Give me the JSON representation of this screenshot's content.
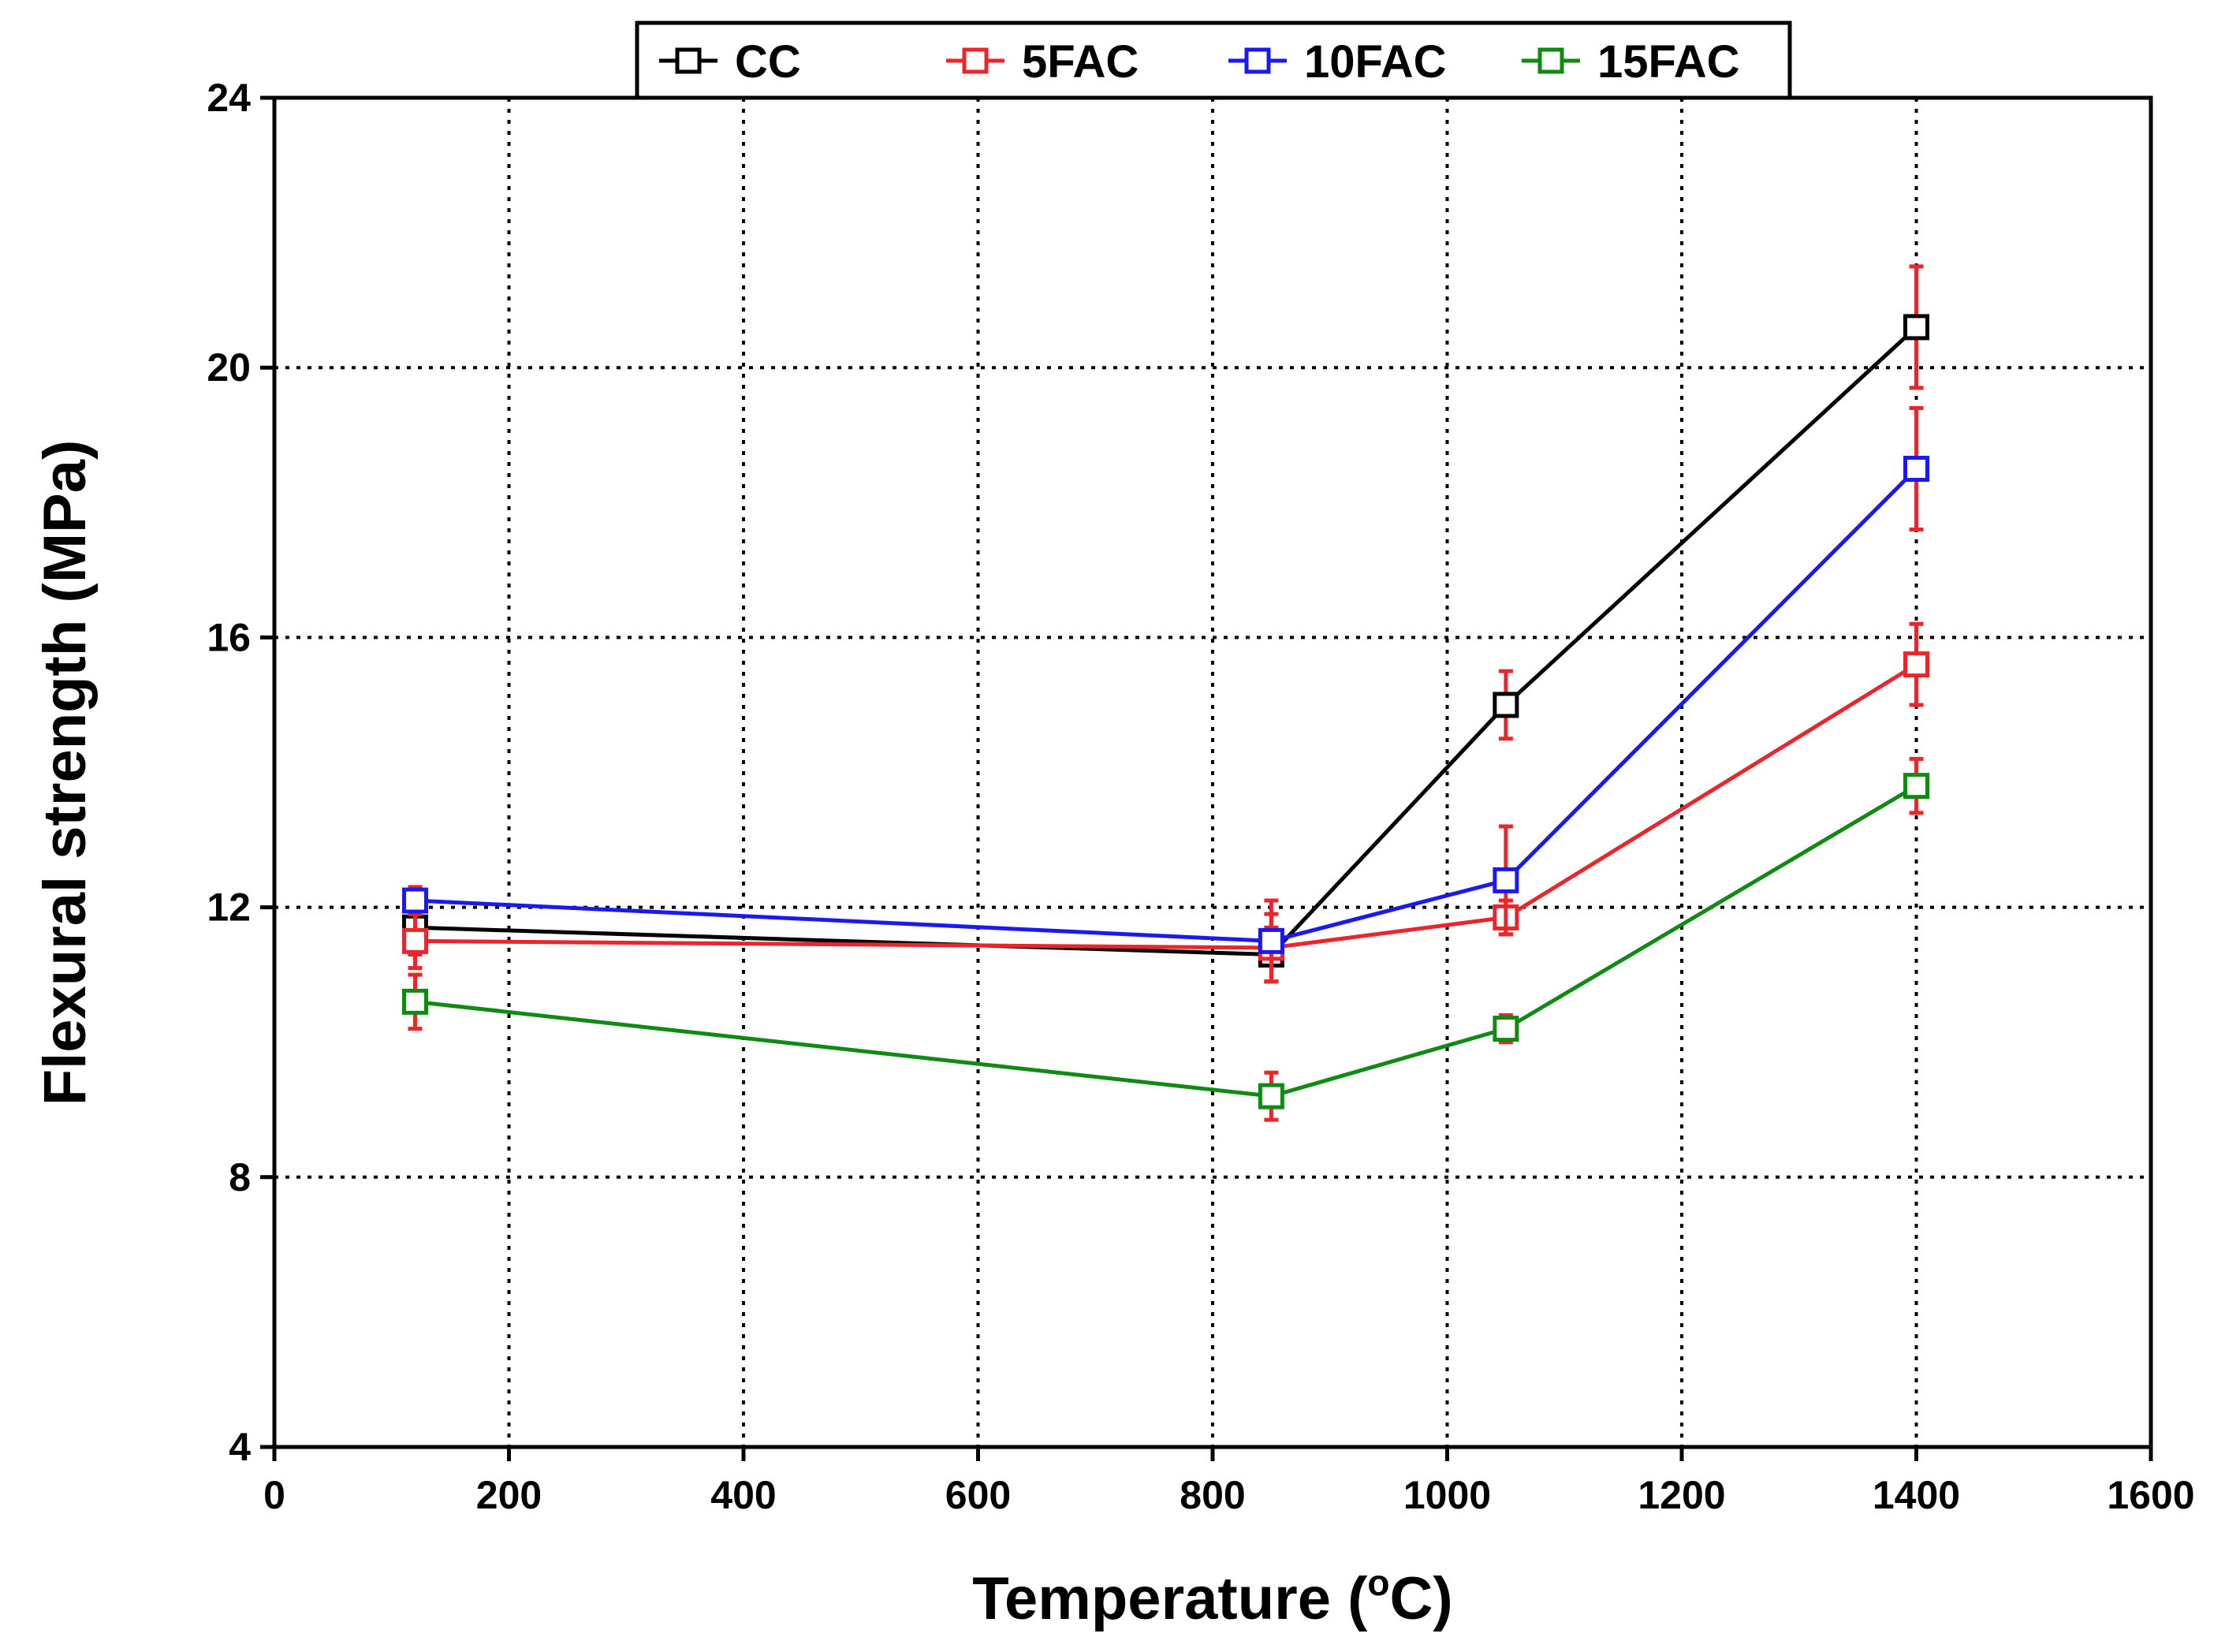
{
  "chart_data": {
    "type": "line",
    "title": "",
    "xlabel": "Temperature (°C)",
    "xlabel_parts": {
      "main": "Temperature (",
      "sup": "o",
      "tail": "C)"
    },
    "ylabel": "Flexural strength (MPa)",
    "xlim": [
      0,
      1600
    ],
    "ylim": [
      4,
      24
    ],
    "xticks": [
      0,
      200,
      400,
      600,
      800,
      1000,
      1200,
      1400,
      1600
    ],
    "yticks": [
      4,
      8,
      12,
      16,
      20,
      24
    ],
    "xtick_labels": [
      "0",
      "200",
      "400",
      "600",
      "800",
      "1000",
      "1200",
      "1400",
      "1600"
    ],
    "ytick_labels": [
      "4",
      "8",
      "12",
      "16",
      "20",
      "24"
    ],
    "grid_x": [
      200,
      400,
      600,
      800,
      1000,
      1200,
      1400
    ],
    "grid_y": [
      8,
      12,
      16,
      20
    ],
    "grid": "dotted",
    "legend_position": "top-center",
    "error_bar_color": "#e8262b",
    "series": [
      {
        "name": "CC",
        "color": "#000000",
        "x": [
          120,
          850,
          1050,
          1400
        ],
        "y": [
          11.7,
          11.3,
          15.0,
          20.6
        ],
        "err": [
          0.4,
          0.4,
          0.5,
          0.9
        ]
      },
      {
        "name": "5FAC",
        "color": "#e8262b",
        "x": [
          120,
          850,
          1050,
          1400
        ],
        "y": [
          11.5,
          11.4,
          11.85,
          15.6
        ],
        "err": [
          0.4,
          0.5,
          0.25,
          0.6
        ]
      },
      {
        "name": "10FAC",
        "color": "#1a1aee",
        "x": [
          120,
          850,
          1050,
          1400
        ],
        "y": [
          12.1,
          11.5,
          12.4,
          18.5
        ],
        "err": [
          0.2,
          0.6,
          0.8,
          0.9
        ]
      },
      {
        "name": "15FAC",
        "color": "#108a10",
        "x": [
          120,
          850,
          1050,
          1400
        ],
        "y": [
          10.6,
          9.2,
          10.2,
          13.8
        ],
        "err": [
          0.4,
          0.35,
          0.2,
          0.4
        ]
      }
    ]
  }
}
